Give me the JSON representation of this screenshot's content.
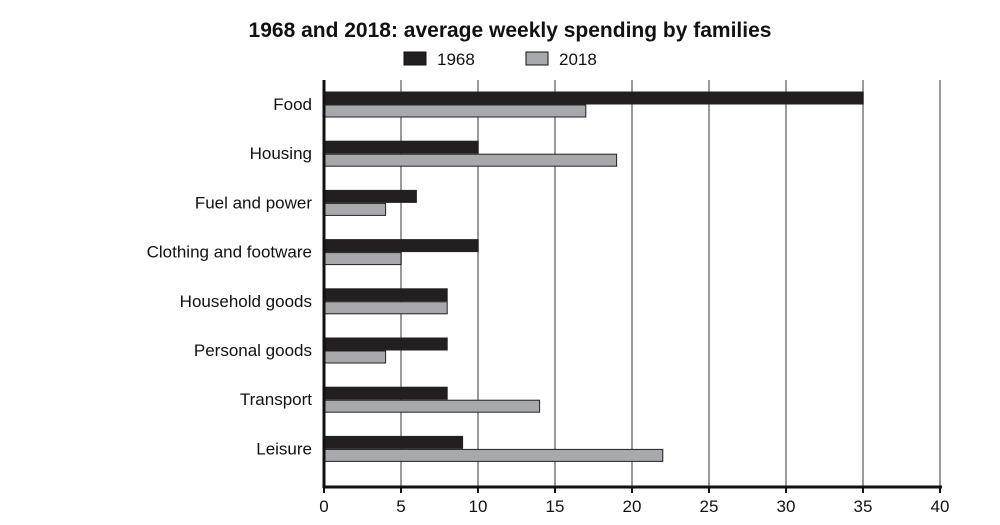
{
  "chart_data": {
    "type": "bar",
    "orientation": "horizontal",
    "title": "1968 and 2018: average weekly spending by families",
    "categories": [
      "Food",
      "Housing",
      "Fuel and power",
      "Clothing and footware",
      "Household goods",
      "Personal goods",
      "Transport",
      "Leisure"
    ],
    "series": [
      {
        "name": "1968",
        "color": "#231f20",
        "values": [
          35,
          10,
          6,
          10,
          8,
          8,
          8,
          9
        ]
      },
      {
        "name": "2018",
        "color": "#a7a9ac",
        "values": [
          17,
          19,
          4,
          5,
          8,
          4,
          14,
          22
        ]
      }
    ],
    "xlim": [
      0,
      40
    ],
    "xticks": [
      "0",
      "5",
      "10",
      "15",
      "20",
      "25",
      "30",
      "35",
      "40"
    ],
    "grid": true,
    "legend": "top"
  }
}
